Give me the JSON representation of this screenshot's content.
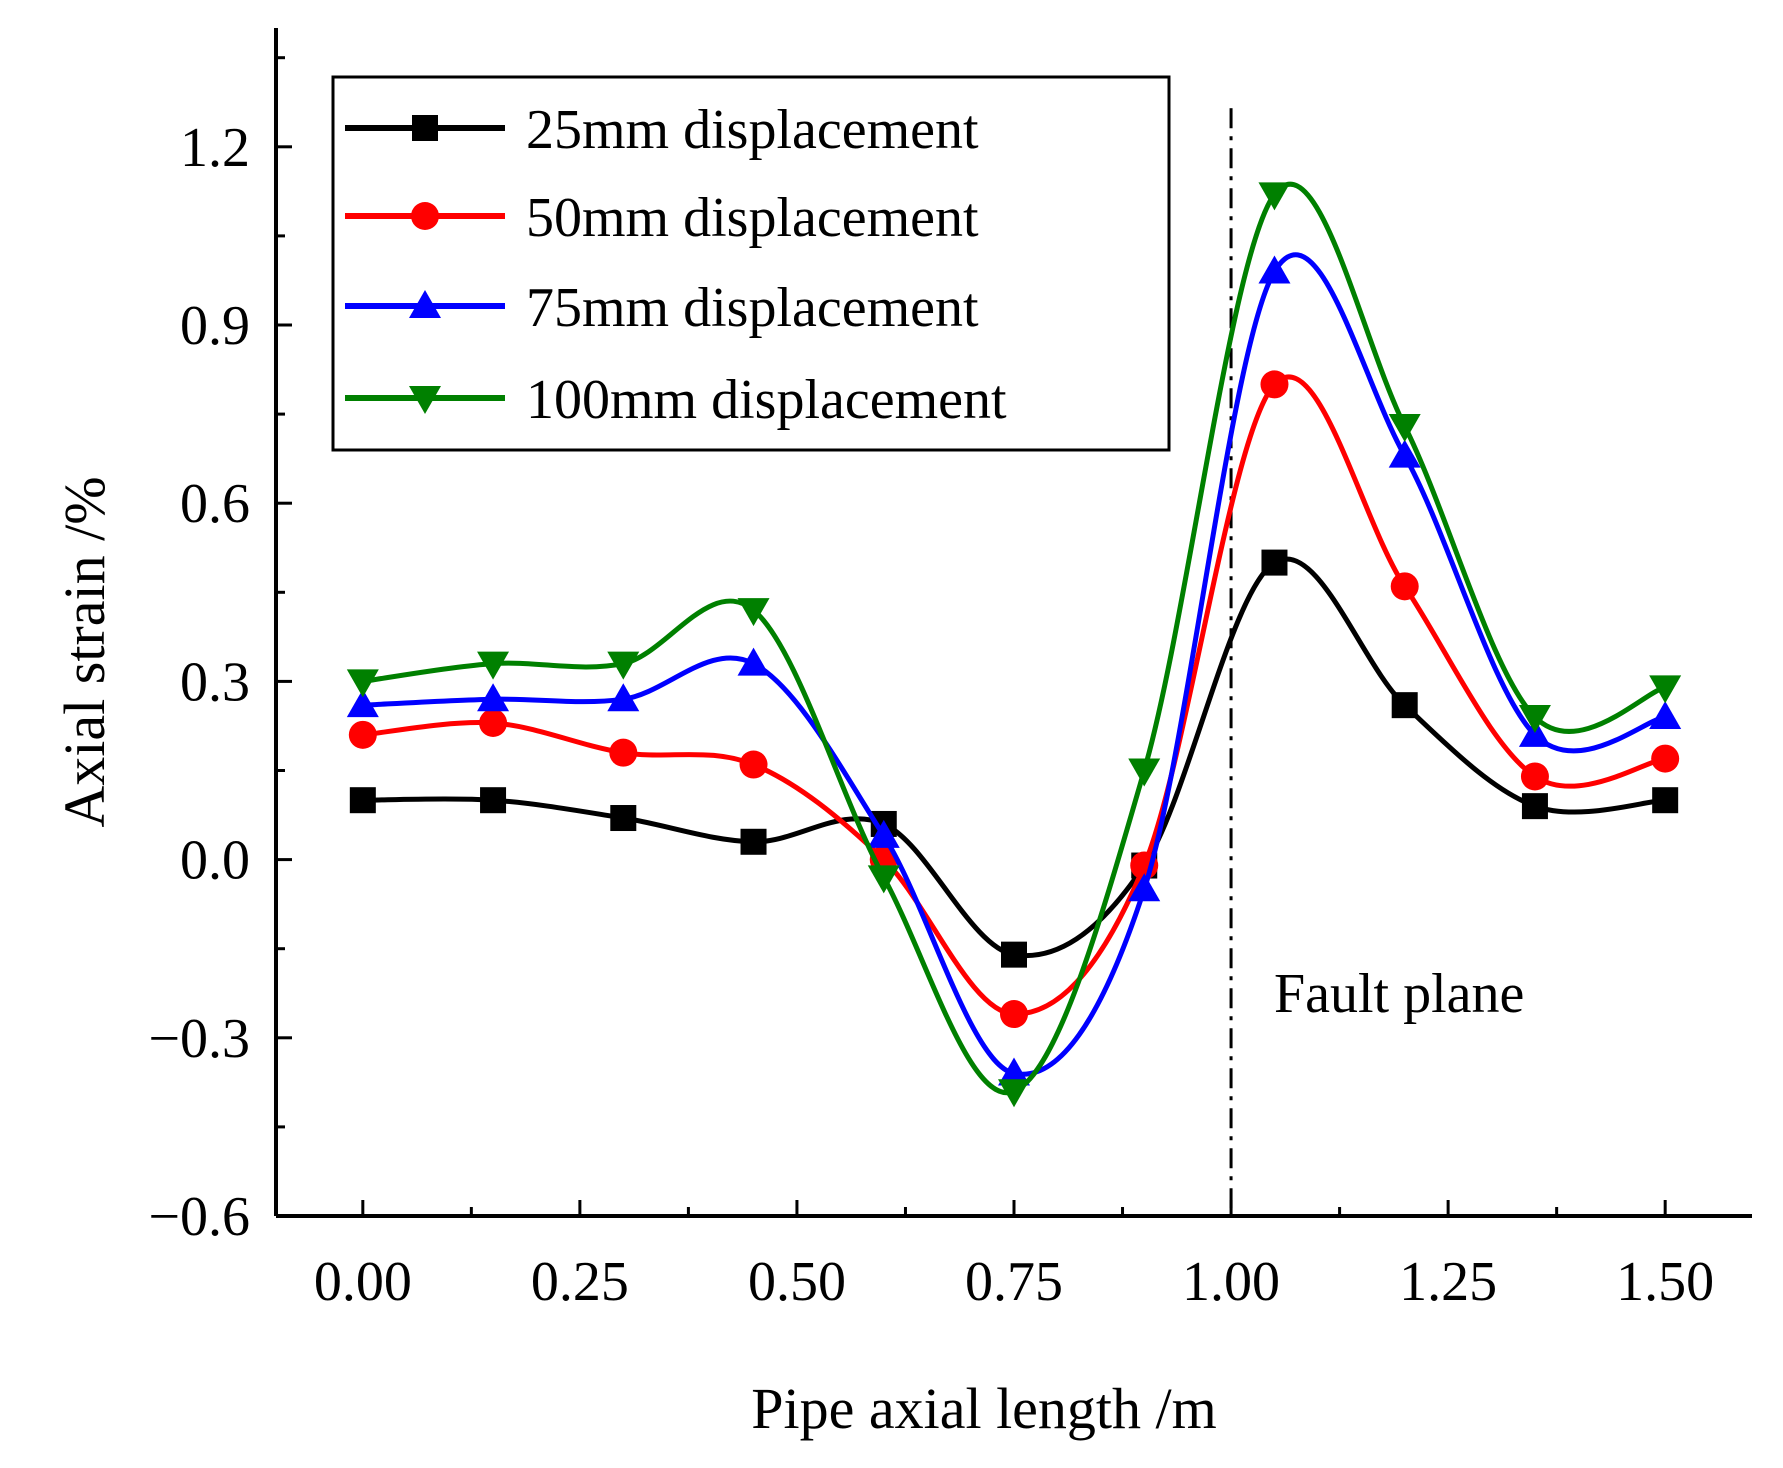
{
  "chart_data": {
    "type": "line",
    "title": "",
    "xlabel": "Pipe axial length /m",
    "ylabel": "Axial strain /%",
    "xlim": [
      -0.1,
      1.6
    ],
    "ylim": [
      -0.6,
      1.4
    ],
    "xticks": [
      0.0,
      0.25,
      0.5,
      0.75,
      1.0,
      1.25,
      1.5
    ],
    "xtick_labels": [
      "0.00",
      "0.25",
      "0.50",
      "0.75",
      "1.00",
      "1.25",
      "1.50"
    ],
    "yticks": [
      -0.6,
      -0.3,
      0.0,
      0.3,
      0.6,
      0.9,
      1.2
    ],
    "ytick_labels": [
      "−0.6",
      "−0.3",
      "0.0",
      "0.3",
      "0.6",
      "0.9",
      "1.2"
    ],
    "x": [
      0.0,
      0.15,
      0.3,
      0.45,
      0.6,
      0.75,
      0.9,
      1.05,
      1.2,
      1.35,
      1.5
    ],
    "series": [
      {
        "name": "25mm displacement",
        "color": "#000000",
        "marker": "square",
        "values": [
          0.1,
          0.1,
          0.07,
          0.03,
          0.06,
          -0.16,
          -0.01,
          0.5,
          0.26,
          0.09,
          0.1
        ]
      },
      {
        "name": "50mm displacement",
        "color": "#ff0000",
        "marker": "circle",
        "values": [
          0.21,
          0.23,
          0.18,
          0.16,
          0.0,
          -0.26,
          -0.01,
          0.8,
          0.46,
          0.14,
          0.17
        ]
      },
      {
        "name": "75mm displacement",
        "color": "#0000ff",
        "marker": "triangle-up",
        "values": [
          0.26,
          0.27,
          0.27,
          0.33,
          0.04,
          -0.36,
          -0.05,
          0.99,
          0.68,
          0.21,
          0.24
        ]
      },
      {
        "name": "100mm displacement",
        "color": "#008000",
        "marker": "triangle-down",
        "values": [
          0.3,
          0.33,
          0.33,
          0.42,
          -0.03,
          -0.39,
          0.15,
          1.12,
          0.73,
          0.24,
          0.29
        ]
      }
    ],
    "annotations": [
      {
        "text": "Fault plane",
        "x": 1.0,
        "style": "dash-dot vertical line"
      }
    ],
    "legend_position": "top-left",
    "grid": false
  }
}
